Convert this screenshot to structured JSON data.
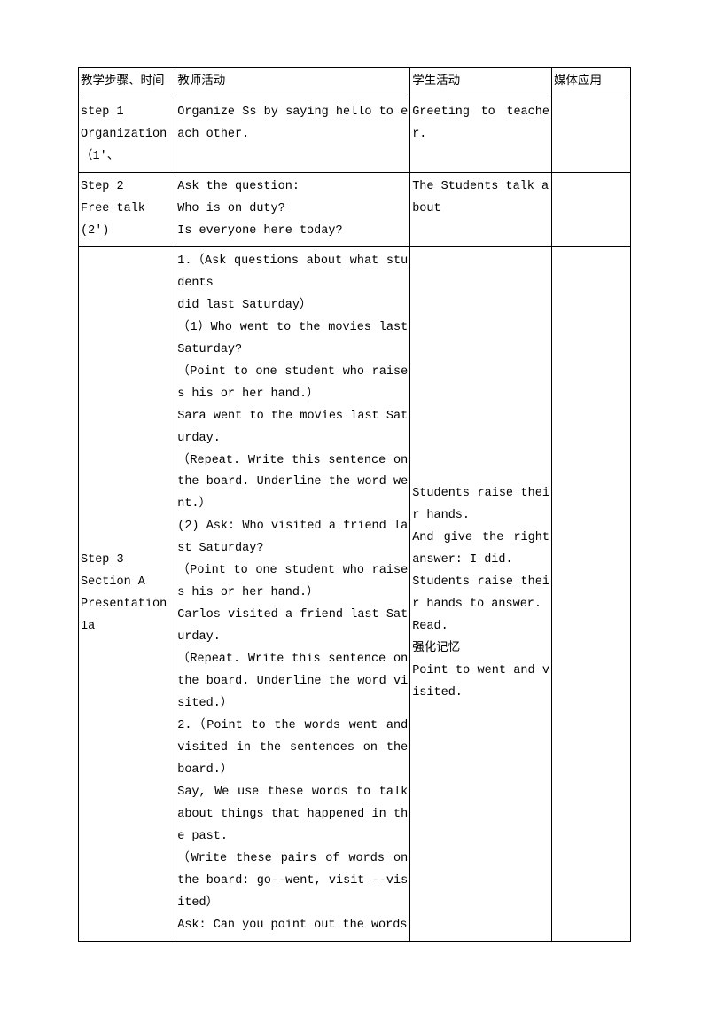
{
  "header": {
    "col1": "教学步骤、时间",
    "col2": "教师活动",
    "col3": "学生活动",
    "col4": "媒体应用"
  },
  "rows": [
    {
      "step": "step 1\nOrganization（1'、",
      "teacher": "Organize Ss by saying hello to each other.",
      "student": "Greeting to teacher.",
      "media": ""
    },
    {
      "step": "Step 2\nFree talk\n(2')",
      "teacher": "Ask the question:\nWho is on duty?\nIs everyone here today?",
      "student": "The Students talk about",
      "media": ""
    },
    {
      "step": "Step 3\nSection A\nPresentation\n1a",
      "teacher": "1.（Ask questions about what students\ndid last Saturday）\n（1）Who went to the movies last Saturday?\n（Point to one student who raises his or her hand.）\nSara went to the movies last Saturday.\n（Repeat. Write this sentence on the board. Underline the word went.）\n(2) Ask: Who visited a friend last Saturday?\n（Point to one student who raises his or her hand.）\nCarlos visited a friend last Saturday.\n（Repeat. Write this sentence on the board. Underline the word visited.）\n2.（Point to the words went and visited in the sentences on the board.）\nSay, We use these words to talk about things that happened in the past.\n（Write these pairs of words on the board: go--went, visit --visited）\nAsk: Can you point out the words",
      "student": "Students raise their hands.\nAnd give the right answer: I did.\nStudents raise their hands to answer.\nRead.\n强化记忆\nPoint to went and visited.",
      "media": ""
    }
  ]
}
